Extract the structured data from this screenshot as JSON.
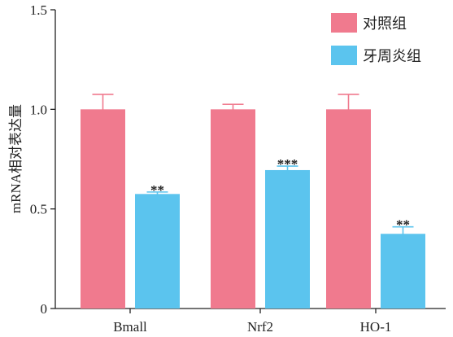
{
  "chart_data": {
    "type": "bar",
    "title": "",
    "xlabel": "",
    "ylabel": "mRNA相对表达量",
    "ylim": [
      0,
      1.5
    ],
    "yticks": [
      0,
      0.5,
      1.0,
      1.5
    ],
    "ytick_labels": [
      "0",
      "0.5",
      "1.0",
      "1.5"
    ],
    "categories": [
      "Bmall",
      "Nrf2",
      "HO-1"
    ],
    "series": [
      {
        "name": "对照组",
        "color": "#f07a8e",
        "values": [
          1.0,
          1.0,
          1.0
        ],
        "error": [
          0.075,
          0.025,
          0.075
        ],
        "significance": [
          "",
          "",
          ""
        ]
      },
      {
        "name": "牙周炎组",
        "color": "#5bc4ee",
        "values": [
          0.575,
          0.695,
          0.375
        ],
        "error": [
          0.01,
          0.02,
          0.035
        ],
        "significance": [
          "**",
          "***",
          "**"
        ]
      }
    ],
    "legend": {
      "position": "top-right"
    },
    "grid": false
  }
}
